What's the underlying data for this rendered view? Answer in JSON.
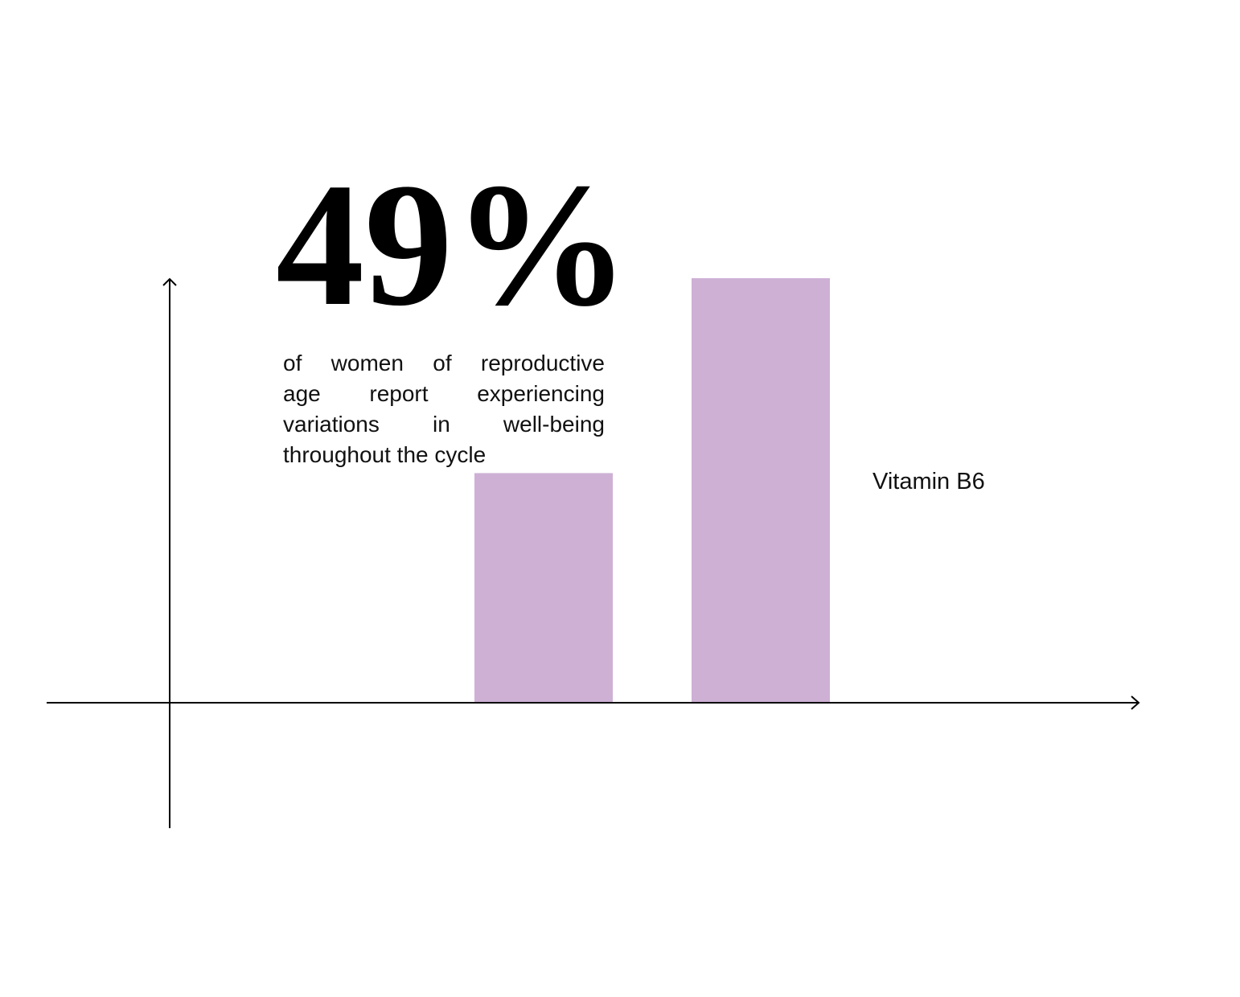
{
  "headline": {
    "stat": "49%",
    "description_lines": [
      "of women of reproductive",
      "age report experiencing",
      "variations in well-being",
      "throughout the cycle"
    ]
  },
  "chart_data": {
    "type": "bar",
    "categories": [
      "",
      ""
    ],
    "values": [
      0.54,
      1.0
    ],
    "annotations": [
      "Vitamin B6"
    ],
    "title": "",
    "xlabel": "",
    "ylabel": "",
    "ylim": [
      0,
      1.0
    ],
    "grid": false,
    "axes_arrows": true,
    "bar_color": "#CEB0D5"
  },
  "colors": {
    "bar": "#CEB0D5",
    "axis": "#000000",
    "text": "#111111"
  }
}
